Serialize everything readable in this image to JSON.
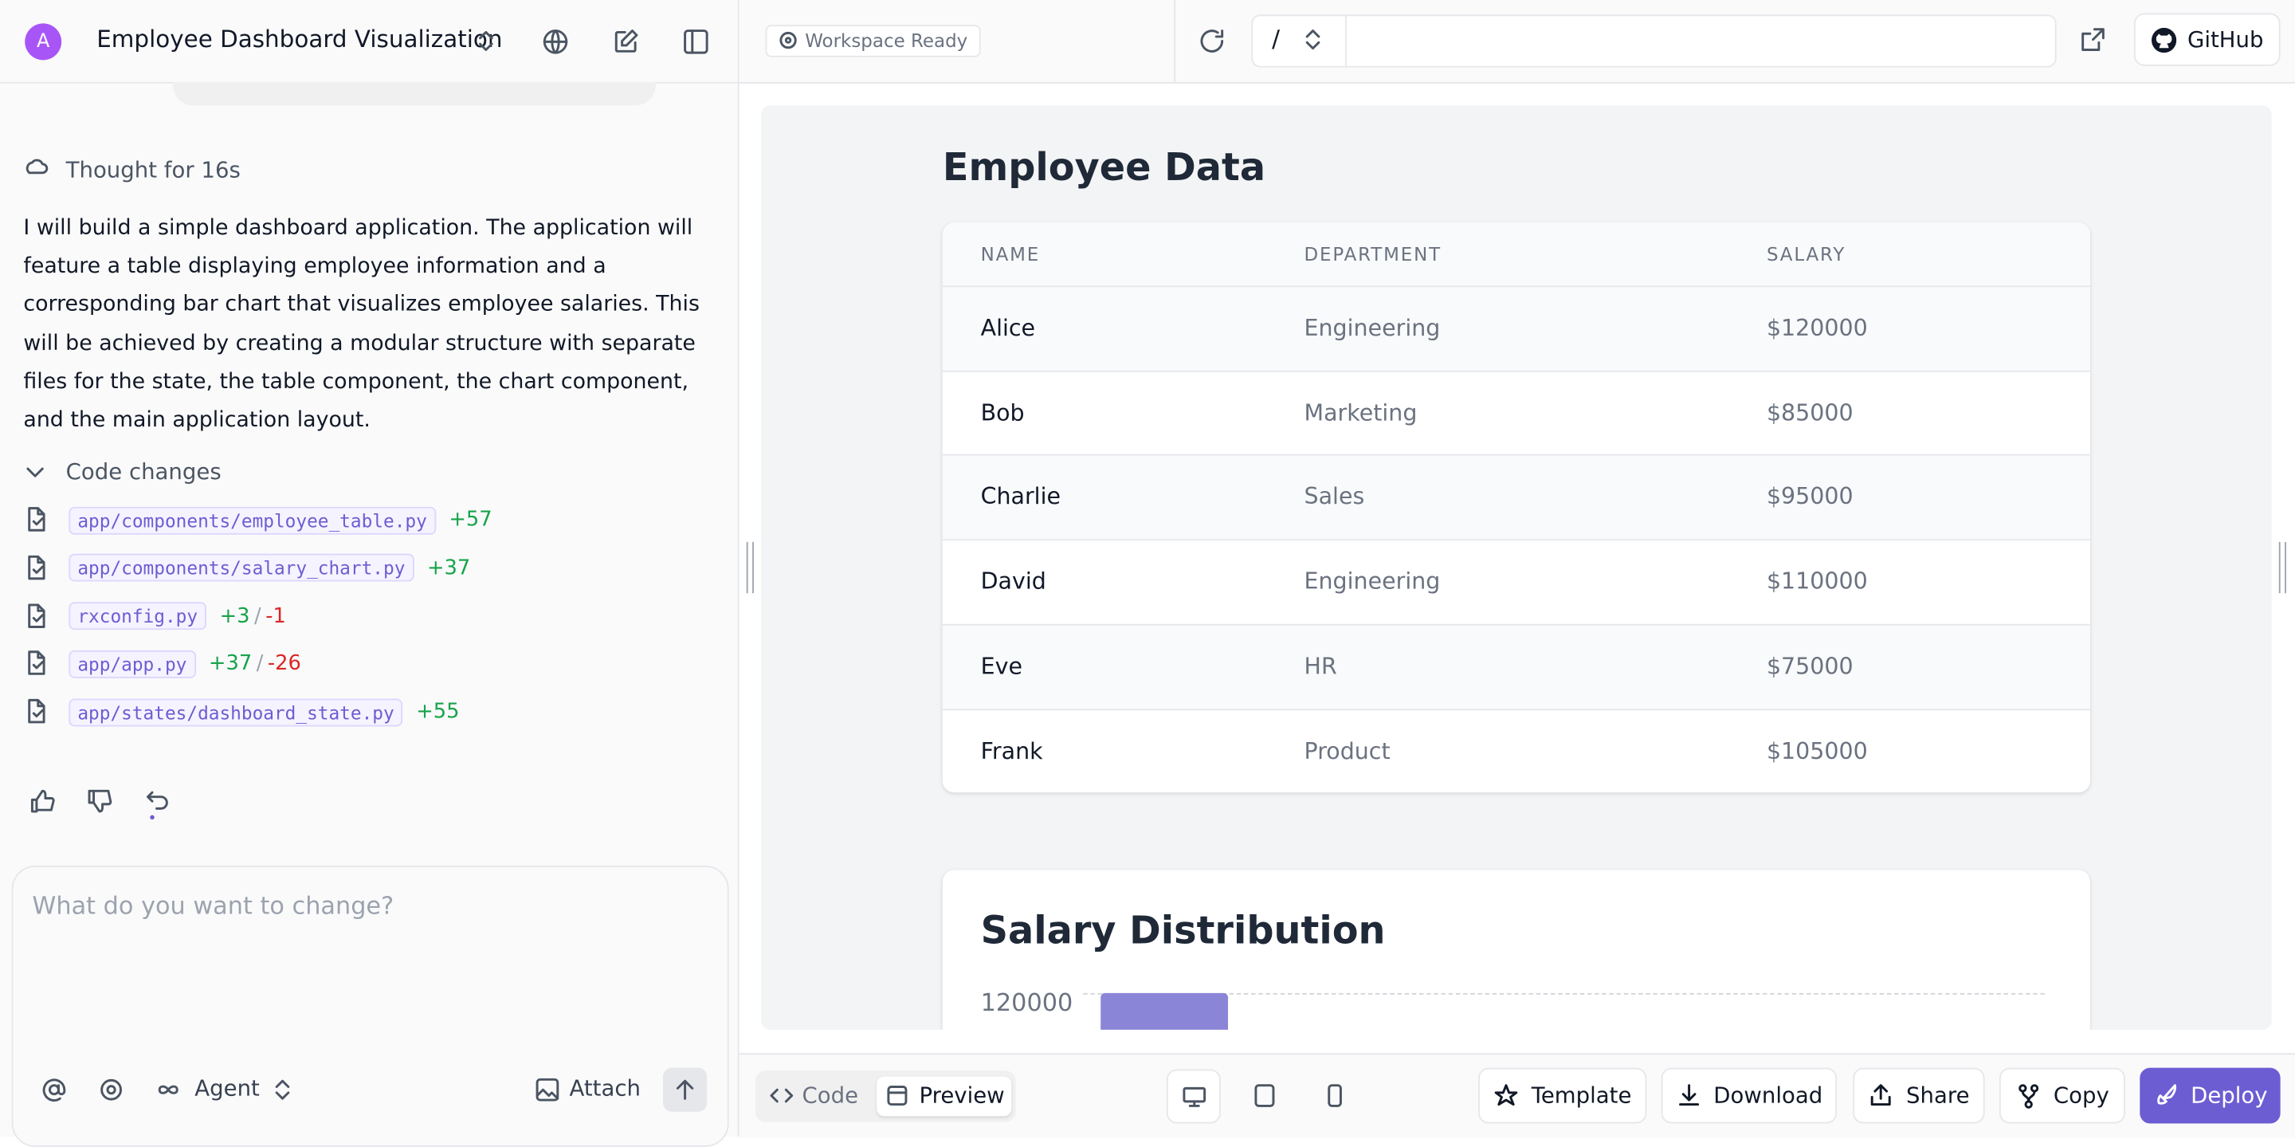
{
  "header": {
    "avatar": "A",
    "project_title": "Employee Dashboard Visualization",
    "status": "Workspace Ready",
    "path": "/",
    "github": "GitHub"
  },
  "chat": {
    "thought": "Thought for 16s",
    "message": "I will build a simple dashboard application. The application will feature a table displaying employee information and a corresponding bar chart that visualizes employee salaries. This will be achieved by creating a modular structure with separate files for the state, the table component, the chart component, and the main application layout.",
    "code_changes_label": "Code changes",
    "diff_separator": "/",
    "files": [
      {
        "name": "app/components/employee_table.py",
        "added": "+57"
      },
      {
        "name": "app/components/salary_chart.py",
        "added": "+37"
      },
      {
        "name": "rxconfig.py",
        "added": "+3",
        "removed": "-1"
      },
      {
        "name": "app/app.py",
        "added": "+37",
        "removed": "-26"
      },
      {
        "name": "app/states/dashboard_state.py",
        "added": "+55"
      }
    ],
    "input_placeholder": "What do you want to change?",
    "agent": "Agent",
    "attach": "Attach"
  },
  "preview": {
    "table_title": "Employee Data",
    "columns": [
      "NAME",
      "DEPARTMENT",
      "SALARY"
    ],
    "rows": [
      [
        "Alice",
        "Engineering",
        "$120000"
      ],
      [
        "Bob",
        "Marketing",
        "$85000"
      ],
      [
        "Charlie",
        "Sales",
        "$95000"
      ],
      [
        "David",
        "Engineering",
        "$110000"
      ],
      [
        "Eve",
        "HR",
        "$75000"
      ],
      [
        "Frank",
        "Product",
        "$105000"
      ]
    ],
    "chart_title": "Salary Distribution",
    "chart_tick": "120000"
  },
  "toolbar": {
    "code": "Code",
    "preview": "Preview",
    "buttons": [
      "Template",
      "Download",
      "Share",
      "Copy",
      "Deploy"
    ]
  }
}
